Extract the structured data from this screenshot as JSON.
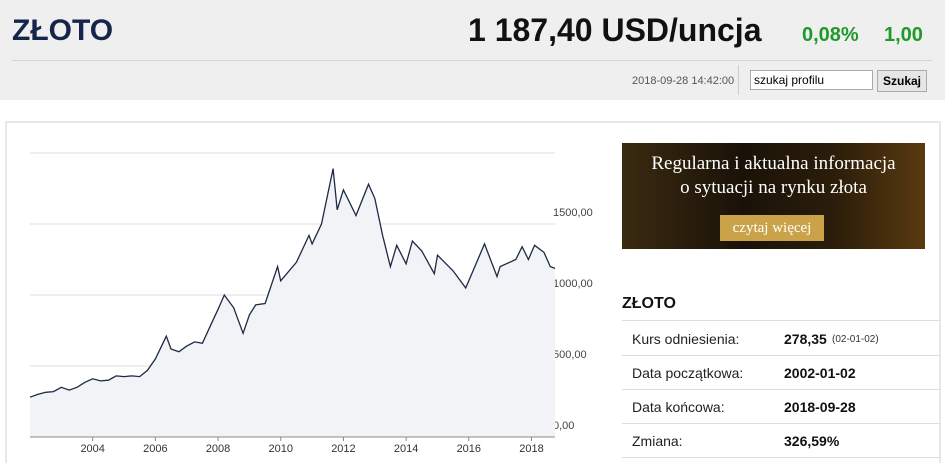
{
  "header": {
    "title": "ZŁOTO",
    "price": "1 187,40 USD/uncja",
    "change_pct": "0,08%",
    "change_abs": "1,00",
    "datetime": "2018-09-28 14:42:00",
    "search_value": "szukaj profilu",
    "search_button": "Szukaj"
  },
  "banner": {
    "line1": "Regularna i aktualna informacja",
    "line2": "o sytuacji na rynku złota",
    "button": "czytaj więcej"
  },
  "info": {
    "title": "ZŁOTO",
    "rows": [
      {
        "label": "Kurs odniesienia:",
        "value": "278,35",
        "note": "(02-01-02)"
      },
      {
        "label": "Data początkowa:",
        "value": "2002-01-02"
      },
      {
        "label": "Data końcowa:",
        "value": "2018-09-28"
      },
      {
        "label": "Zmiana:",
        "value": "326,59%"
      }
    ]
  },
  "chart_data": {
    "type": "line",
    "color": "#1c2a44",
    "fill": "#f1f3f7",
    "grid": true,
    "xlim": [
      2002,
      2018.75
    ],
    "xticks": [
      2004,
      2006,
      2008,
      2010,
      2012,
      2014,
      2016,
      2018
    ],
    "ylim": [
      0,
      2000
    ],
    "yticks": [
      {
        "value": 0,
        "label": "0,00"
      },
      {
        "value": 500,
        "label": "500,00"
      },
      {
        "value": 1000,
        "label": "1000,00"
      },
      {
        "value": 1500,
        "label": "1500,00"
      }
    ],
    "x": [
      2002,
      2002.25,
      2002.5,
      2002.75,
      2003,
      2003.25,
      2003.5,
      2003.75,
      2004,
      2004.25,
      2004.5,
      2004.75,
      2005,
      2005.25,
      2005.5,
      2005.75,
      2006,
      2006.35,
      2006.5,
      2006.75,
      2007,
      2007.25,
      2007.5,
      2007.75,
      2008,
      2008.2,
      2008.5,
      2008.8,
      2009,
      2009.2,
      2009.5,
      2009.9,
      2010,
      2010.5,
      2010.9,
      2011,
      2011.3,
      2011.67,
      2011.8,
      2012,
      2012.4,
      2012.8,
      2013,
      2013.25,
      2013.5,
      2013.7,
      2014,
      2014.2,
      2014.5,
      2014.9,
      2015,
      2015.5,
      2015.9,
      2016,
      2016.5,
      2016.9,
      2017,
      2017.5,
      2017.7,
      2017.9,
      2018.1,
      2018.4,
      2018.6,
      2018.75
    ],
    "values": [
      280,
      300,
      315,
      320,
      350,
      330,
      350,
      385,
      410,
      395,
      400,
      430,
      425,
      430,
      425,
      470,
      550,
      710,
      620,
      600,
      640,
      670,
      660,
      780,
      900,
      1000,
      910,
      730,
      860,
      930,
      940,
      1200,
      1100,
      1230,
      1420,
      1360,
      1500,
      1890,
      1600,
      1740,
      1560,
      1780,
      1680,
      1420,
      1200,
      1350,
      1220,
      1380,
      1310,
      1150,
      1280,
      1170,
      1050,
      1100,
      1360,
      1130,
      1200,
      1250,
      1340,
      1250,
      1350,
      1300,
      1200,
      1187
    ]
  }
}
